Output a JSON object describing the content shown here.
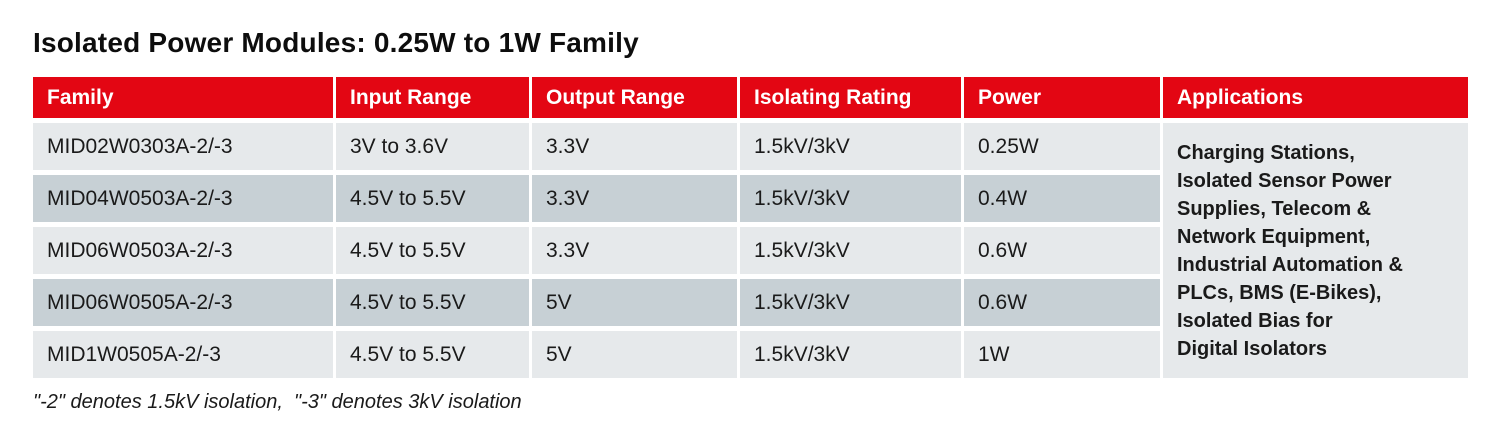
{
  "title": "Isolated Power Modules: 0.25W to 1W Family",
  "colors": {
    "header_bg": "#e30613",
    "header_text": "#ffffff",
    "row_light": "#e6e9eb",
    "row_dark": "#c7d0d5",
    "body_text": "#1a1a1a"
  },
  "table": {
    "columns": [
      "Family",
      "Input Range",
      "Output Range",
      "Isolating Rating",
      "Power",
      "Applications"
    ],
    "rows": [
      {
        "family": "MID02W0303A-2/-3",
        "input_range": "3V to 3.6V",
        "output_range": "3.3V",
        "isolating_rating": "1.5kV/3kV",
        "power": "0.25W"
      },
      {
        "family": "MID04W0503A-2/-3",
        "input_range": "4.5V to 5.5V",
        "output_range": "3.3V",
        "isolating_rating": "1.5kV/3kV",
        "power": "0.4W"
      },
      {
        "family": "MID06W0503A-2/-3",
        "input_range": "4.5V to 5.5V",
        "output_range": "3.3V",
        "isolating_rating": "1.5kV/3kV",
        "power": "0.6W"
      },
      {
        "family": "MID06W0505A-2/-3",
        "input_range": "4.5V to 5.5V",
        "output_range": "5V",
        "isolating_rating": "1.5kV/3kV",
        "power": "0.6W"
      },
      {
        "family": "MID1W0505A-2/-3",
        "input_range": "4.5V to 5.5V",
        "output_range": "5V",
        "isolating_rating": "1.5kV/3kV",
        "power": "1W"
      }
    ],
    "applications": "Charging Stations,\nIsolated Sensor Power\nSupplies, Telecom &\nNetwork Equipment,\nIndustrial Automation &\nPLCs, BMS (E-Bikes),\nIsolated Bias for\nDigital Isolators"
  },
  "footnote": "\"-2\" denotes 1.5kV isolation,  \"-3\" denotes 3kV isolation"
}
